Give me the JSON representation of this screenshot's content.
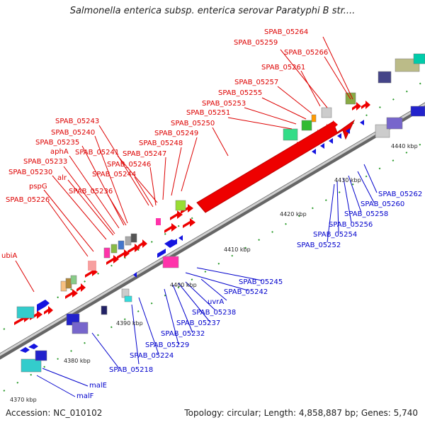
{
  "title": "Salmonella enterica subsp. enterica serovar Paratyphi B str....",
  "footer": {
    "accession": "Accession: NC_010102",
    "summary": "Topology: circular; Length: 4,858,887 bp; Genes: 5,740"
  },
  "colors": {
    "forward_label": "#dd0000",
    "reverse_label": "#0000cc",
    "forward_gene": "#ff0000",
    "reverse_gene": "#1414e0",
    "backbone": "#888888",
    "tick": "#2a9a2a"
  },
  "kbp_labels": [
    "4370 kbp",
    "4380 kbp",
    "4390 kbp",
    "4400 kbp",
    "4410 kbp",
    "4420 kbp",
    "4430 kbp",
    "4440 kbp"
  ],
  "forward_labels": [
    "SPAB_05264",
    "SPAB_05259",
    "SPAB_05266",
    "SPAB_05261",
    "SPAB_05257",
    "SPAB_05255",
    "SPAB_05253",
    "SPAB_05251",
    "SPAB_05250",
    "SPAB_05249",
    "SPAB_05248",
    "SPAB_05247",
    "SPAB_05246",
    "SPAB_05244",
    "SPAB_05243",
    "SPAB_05240",
    "SPAB_05241",
    "SPAB_05235",
    "aphA",
    "SPAB_05233",
    "SPAB_05230",
    "alr",
    "SPAB_05236",
    "pspG",
    "SPAB_05226",
    "ubiA"
  ],
  "reverse_labels": [
    "SPAB_05262",
    "SPAB_05260",
    "SPAB_05258",
    "SPAB_05256",
    "SPAB_05254",
    "SPAB_05252",
    "SPAB_05245",
    "SPAB_05242",
    "uvrA",
    "SPAB_05238",
    "SPAB_05237",
    "SPAB_05232",
    "SPAB_05229",
    "SPAB_05224",
    "SPAB_05218",
    "malE",
    "malF"
  ]
}
